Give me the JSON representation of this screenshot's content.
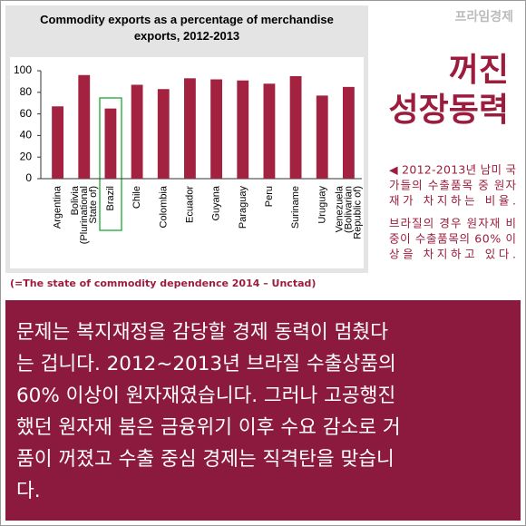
{
  "chart_data": {
    "type": "bar",
    "title": "Commodity exports as a percentage of merchandise exports, 2012-2013",
    "categories": [
      "Argentina",
      "Bolivia\n(Plurinational\nState of)",
      "Brazil",
      "Chile",
      "Colombia",
      "Ecuador",
      "Guyana",
      "Paraguay",
      "Peru",
      "Suriname",
      "Uruguay",
      "Venezuela\n(Bolivarian\nRepublic of)"
    ],
    "values": [
      67,
      96,
      65,
      87,
      83,
      93,
      92,
      91,
      88,
      95,
      77,
      85
    ],
    "color": "#a3223f",
    "ylim": [
      0,
      100
    ],
    "yticks": [
      0,
      20,
      40,
      60,
      80,
      100
    ],
    "grid": false,
    "source": "(=The state of commodity dependence 2014 – Unctad)"
  },
  "brand": "프라임경제",
  "headline": [
    "꺼진",
    "성장동력"
  ],
  "note": [
    "◀ 2012-2013년 남미 국",
    "가들의 수출품목 중 원자",
    "재가 차지하는 비율.",
    "브라질의 경우 원자재 비",
    "중이 수출품목의 60% 이",
    "상을 차지하고 있다."
  ],
  "body": [
    "문제는 복지재정을 감당할 경제 동력이 멈췄다",
    "는 겁니다. 2012~2013년 브라질 수출상품의",
    "60% 이상이 원자재였습니다. 그러나 고공행진",
    "했던 원자재 붐은 금융위기 이후 수요 감소로 거",
    "품이 꺼졌고 수출 중심 경제는 직격탄을 맞습니",
    "다."
  ]
}
